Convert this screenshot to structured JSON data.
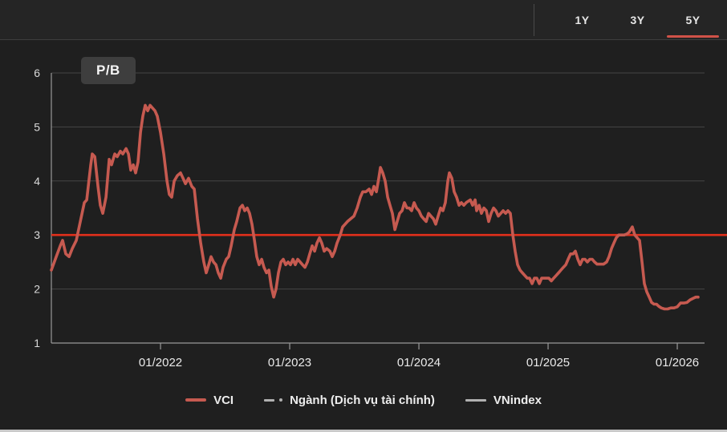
{
  "header": {
    "tabs": [
      {
        "label": "1Y",
        "active": false
      },
      {
        "label": "3Y",
        "active": false
      },
      {
        "label": "5Y",
        "active": true
      }
    ],
    "active_underline_color": "#d05248"
  },
  "colors": {
    "background": "#1f1f1f",
    "topbar_background": "#252525",
    "gridline": "#454545",
    "axis": "#999999",
    "vci_line": "#c65a50",
    "reference_line": "#e12f1b",
    "legend_gray": "#b0b0b0"
  },
  "chart_data": {
    "type": "line",
    "title": "P/B",
    "x_axis": {
      "range": [
        2021.155,
        2026.211
      ],
      "ticks": [
        2022,
        2023,
        2024,
        2025,
        2026
      ],
      "tick_labels": [
        "01/2022",
        "01/2023",
        "01/2024",
        "01/2025",
        "01/2026"
      ]
    },
    "y_axis": {
      "range": [
        1,
        6
      ],
      "ticks": [
        1,
        2,
        3,
        4,
        5,
        6
      ],
      "tick_labels": [
        "1",
        "2",
        "3",
        "4",
        "5",
        "6"
      ]
    },
    "grid": true,
    "legend_position": "bottom-center",
    "reference_line": {
      "value": 3,
      "color": "#e12f1b"
    },
    "series": [
      {
        "name": "VCI",
        "color": "#c65a50",
        "style": "solid",
        "points": [
          [
            2021.155,
            2.35
          ],
          [
            2021.193,
            2.6
          ],
          [
            2021.224,
            2.8
          ],
          [
            2021.242,
            2.9
          ],
          [
            2021.267,
            2.65
          ],
          [
            2021.292,
            2.6
          ],
          [
            2021.317,
            2.75
          ],
          [
            2021.348,
            2.9
          ],
          [
            2021.379,
            3.25
          ],
          [
            2021.41,
            3.6
          ],
          [
            2021.429,
            3.65
          ],
          [
            2021.441,
            3.9
          ],
          [
            2021.46,
            4.3
          ],
          [
            2021.472,
            4.5
          ],
          [
            2021.491,
            4.45
          ],
          [
            2021.516,
            3.9
          ],
          [
            2021.534,
            3.55
          ],
          [
            2021.553,
            3.4
          ],
          [
            2021.578,
            3.7
          ],
          [
            2021.603,
            4.4
          ],
          [
            2021.621,
            4.3
          ],
          [
            2021.646,
            4.5
          ],
          [
            2021.665,
            4.45
          ],
          [
            2021.689,
            4.55
          ],
          [
            2021.708,
            4.5
          ],
          [
            2021.733,
            4.6
          ],
          [
            2021.752,
            4.5
          ],
          [
            2021.77,
            4.2
          ],
          [
            2021.789,
            4.3
          ],
          [
            2021.807,
            4.15
          ],
          [
            2021.826,
            4.35
          ],
          [
            2021.845,
            4.9
          ],
          [
            2021.863,
            5.2
          ],
          [
            2021.882,
            5.4
          ],
          [
            2021.901,
            5.3
          ],
          [
            2021.919,
            5.4
          ],
          [
            2021.938,
            5.35
          ],
          [
            2021.957,
            5.3
          ],
          [
            2021.975,
            5.2
          ],
          [
            2022.0,
            4.9
          ],
          [
            2022.025,
            4.5
          ],
          [
            2022.05,
            4.0
          ],
          [
            2022.068,
            3.75
          ],
          [
            2022.087,
            3.7
          ],
          [
            2022.106,
            4.0
          ],
          [
            2022.13,
            4.1
          ],
          [
            2022.155,
            4.15
          ],
          [
            2022.174,
            4.05
          ],
          [
            2022.193,
            3.95
          ],
          [
            2022.217,
            4.05
          ],
          [
            2022.242,
            3.9
          ],
          [
            2022.261,
            3.85
          ],
          [
            2022.286,
            3.3
          ],
          [
            2022.311,
            2.85
          ],
          [
            2022.335,
            2.5
          ],
          [
            2022.354,
            2.3
          ],
          [
            2022.373,
            2.45
          ],
          [
            2022.391,
            2.6
          ],
          [
            2022.41,
            2.5
          ],
          [
            2022.429,
            2.45
          ],
          [
            2022.447,
            2.3
          ],
          [
            2022.466,
            2.2
          ],
          [
            2022.484,
            2.4
          ],
          [
            2022.509,
            2.55
          ],
          [
            2022.528,
            2.6
          ],
          [
            2022.547,
            2.8
          ],
          [
            2022.571,
            3.1
          ],
          [
            2022.59,
            3.25
          ],
          [
            2022.615,
            3.5
          ],
          [
            2022.634,
            3.55
          ],
          [
            2022.652,
            3.45
          ],
          [
            2022.671,
            3.5
          ],
          [
            2022.689,
            3.4
          ],
          [
            2022.708,
            3.2
          ],
          [
            2022.727,
            2.9
          ],
          [
            2022.745,
            2.6
          ],
          [
            2022.764,
            2.45
          ],
          [
            2022.783,
            2.55
          ],
          [
            2022.801,
            2.4
          ],
          [
            2022.82,
            2.3
          ],
          [
            2022.839,
            2.35
          ],
          [
            2022.857,
            2.05
          ],
          [
            2022.876,
            1.85
          ],
          [
            2022.894,
            2.0
          ],
          [
            2022.913,
            2.3
          ],
          [
            2022.932,
            2.5
          ],
          [
            2022.95,
            2.55
          ],
          [
            2022.969,
            2.45
          ],
          [
            2022.988,
            2.5
          ],
          [
            2023.006,
            2.45
          ],
          [
            2023.025,
            2.55
          ],
          [
            2023.043,
            2.45
          ],
          [
            2023.062,
            2.55
          ],
          [
            2023.081,
            2.5
          ],
          [
            2023.099,
            2.45
          ],
          [
            2023.118,
            2.4
          ],
          [
            2023.137,
            2.5
          ],
          [
            2023.155,
            2.65
          ],
          [
            2023.174,
            2.8
          ],
          [
            2023.193,
            2.7
          ],
          [
            2023.211,
            2.85
          ],
          [
            2023.23,
            2.95
          ],
          [
            2023.248,
            2.85
          ],
          [
            2023.267,
            2.7
          ],
          [
            2023.286,
            2.75
          ],
          [
            2023.311,
            2.7
          ],
          [
            2023.329,
            2.6
          ],
          [
            2023.348,
            2.7
          ],
          [
            2023.366,
            2.85
          ],
          [
            2023.391,
            3.0
          ],
          [
            2023.41,
            3.15
          ],
          [
            2023.429,
            3.2
          ],
          [
            2023.447,
            3.25
          ],
          [
            2023.472,
            3.3
          ],
          [
            2023.497,
            3.35
          ],
          [
            2023.522,
            3.5
          ],
          [
            2023.547,
            3.7
          ],
          [
            2023.565,
            3.8
          ],
          [
            2023.59,
            3.8
          ],
          [
            2023.615,
            3.85
          ],
          [
            2023.634,
            3.75
          ],
          [
            2023.652,
            3.9
          ],
          [
            2023.671,
            3.8
          ],
          [
            2023.689,
            4.05
          ],
          [
            2023.702,
            4.25
          ],
          [
            2023.72,
            4.15
          ],
          [
            2023.739,
            4.0
          ],
          [
            2023.758,
            3.7
          ],
          [
            2023.776,
            3.55
          ],
          [
            2023.795,
            3.4
          ],
          [
            2023.814,
            3.1
          ],
          [
            2023.832,
            3.25
          ],
          [
            2023.851,
            3.4
          ],
          [
            2023.87,
            3.45
          ],
          [
            2023.888,
            3.6
          ],
          [
            2023.907,
            3.5
          ],
          [
            2023.925,
            3.5
          ],
          [
            2023.944,
            3.45
          ],
          [
            2023.963,
            3.6
          ],
          [
            2023.981,
            3.5
          ],
          [
            2024.0,
            3.45
          ],
          [
            2024.019,
            3.35
          ],
          [
            2024.037,
            3.3
          ],
          [
            2024.056,
            3.25
          ],
          [
            2024.075,
            3.4
          ],
          [
            2024.093,
            3.35
          ],
          [
            2024.112,
            3.3
          ],
          [
            2024.13,
            3.2
          ],
          [
            2024.149,
            3.35
          ],
          [
            2024.168,
            3.5
          ],
          [
            2024.186,
            3.45
          ],
          [
            2024.205,
            3.6
          ],
          [
            2024.224,
            4.0
          ],
          [
            2024.236,
            4.15
          ],
          [
            2024.255,
            4.05
          ],
          [
            2024.273,
            3.8
          ],
          [
            2024.292,
            3.7
          ],
          [
            2024.311,
            3.55
          ],
          [
            2024.329,
            3.6
          ],
          [
            2024.348,
            3.55
          ],
          [
            2024.366,
            3.6
          ],
          [
            2024.398,
            3.65
          ],
          [
            2024.416,
            3.55
          ],
          [
            2024.435,
            3.65
          ],
          [
            2024.447,
            3.45
          ],
          [
            2024.466,
            3.55
          ],
          [
            2024.484,
            3.4
          ],
          [
            2024.503,
            3.5
          ],
          [
            2024.522,
            3.45
          ],
          [
            2024.54,
            3.25
          ],
          [
            2024.559,
            3.4
          ],
          [
            2024.578,
            3.5
          ],
          [
            2024.596,
            3.45
          ],
          [
            2024.615,
            3.35
          ],
          [
            2024.634,
            3.4
          ],
          [
            2024.652,
            3.45
          ],
          [
            2024.671,
            3.4
          ],
          [
            2024.689,
            3.45
          ],
          [
            2024.708,
            3.4
          ],
          [
            2024.727,
            3.0
          ],
          [
            2024.745,
            2.7
          ],
          [
            2024.764,
            2.45
          ],
          [
            2024.783,
            2.35
          ],
          [
            2024.801,
            2.3
          ],
          [
            2024.82,
            2.25
          ],
          [
            2024.839,
            2.2
          ],
          [
            2024.857,
            2.2
          ],
          [
            2024.876,
            2.1
          ],
          [
            2024.894,
            2.2
          ],
          [
            2024.913,
            2.2
          ],
          [
            2024.932,
            2.1
          ],
          [
            2024.95,
            2.2
          ],
          [
            2024.969,
            2.2
          ],
          [
            2024.988,
            2.2
          ],
          [
            2025.006,
            2.2
          ],
          [
            2025.025,
            2.15
          ],
          [
            2025.043,
            2.2
          ],
          [
            2025.062,
            2.25
          ],
          [
            2025.081,
            2.3
          ],
          [
            2025.099,
            2.35
          ],
          [
            2025.118,
            2.4
          ],
          [
            2025.137,
            2.45
          ],
          [
            2025.155,
            2.55
          ],
          [
            2025.174,
            2.65
          ],
          [
            2025.193,
            2.65
          ],
          [
            2025.211,
            2.7
          ],
          [
            2025.23,
            2.55
          ],
          [
            2025.248,
            2.45
          ],
          [
            2025.267,
            2.55
          ],
          [
            2025.286,
            2.55
          ],
          [
            2025.304,
            2.5
          ],
          [
            2025.323,
            2.55
          ],
          [
            2025.342,
            2.55
          ],
          [
            2025.36,
            2.5
          ],
          [
            2025.379,
            2.46
          ],
          [
            2025.404,
            2.46
          ],
          [
            2025.429,
            2.46
          ],
          [
            2025.453,
            2.5
          ],
          [
            2025.472,
            2.6
          ],
          [
            2025.491,
            2.75
          ],
          [
            2025.509,
            2.85
          ],
          [
            2025.528,
            2.95
          ],
          [
            2025.547,
            3.0
          ],
          [
            2025.565,
            3.0
          ],
          [
            2025.59,
            3.0
          ],
          [
            2025.609,
            3.02
          ],
          [
            2025.627,
            3.05
          ],
          [
            2025.652,
            3.15
          ],
          [
            2025.671,
            3.0
          ],
          [
            2025.689,
            2.95
          ],
          [
            2025.708,
            2.9
          ],
          [
            2025.727,
            2.5
          ],
          [
            2025.745,
            2.1
          ],
          [
            2025.764,
            1.95
          ],
          [
            2025.783,
            1.85
          ],
          [
            2025.801,
            1.75
          ],
          [
            2025.82,
            1.72
          ],
          [
            2025.839,
            1.72
          ],
          [
            2025.857,
            1.68
          ],
          [
            2025.876,
            1.65
          ],
          [
            2025.901,
            1.63
          ],
          [
            2025.925,
            1.63
          ],
          [
            2025.95,
            1.65
          ],
          [
            2025.975,
            1.65
          ],
          [
            2026.0,
            1.67
          ],
          [
            2026.025,
            1.74
          ],
          [
            2026.05,
            1.74
          ],
          [
            2026.075,
            1.75
          ],
          [
            2026.099,
            1.8
          ],
          [
            2026.124,
            1.83
          ],
          [
            2026.143,
            1.85
          ],
          [
            2026.161,
            1.85
          ]
        ]
      },
      {
        "name": "Ngành (Dịch vụ tài chính)",
        "color": "#b0b0b0",
        "style": "dash-dot",
        "points": []
      },
      {
        "name": "VNindex",
        "color": "#b0b0b0",
        "style": "solid",
        "points": []
      }
    ]
  }
}
